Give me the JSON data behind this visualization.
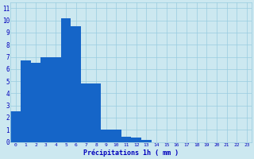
{
  "categories": [
    0,
    1,
    2,
    3,
    4,
    5,
    6,
    7,
    8,
    9,
    10,
    11,
    12,
    13,
    14,
    15,
    16,
    17,
    18,
    19,
    20,
    21,
    22,
    23
  ],
  "values": [
    2.5,
    6.7,
    6.5,
    7.0,
    7.0,
    10.2,
    9.5,
    4.8,
    4.8,
    1.0,
    1.0,
    0.4,
    0.35,
    0.15,
    0.0,
    0.0,
    0.0,
    0.0,
    0.0,
    0.0,
    0.0,
    0.0,
    0.0,
    0.0
  ],
  "bar_color": "#1565c8",
  "background_color": "#cce8f0",
  "grid_color": "#99cce0",
  "xlabel": "Précipitations 1h ( mm )",
  "xlabel_color": "#0000bb",
  "tick_color": "#0000bb",
  "ylabel_ticks": [
    0,
    1,
    2,
    3,
    4,
    5,
    6,
    7,
    8,
    9,
    10,
    11
  ],
  "ylim": [
    0,
    11.5
  ],
  "xlim": [
    -0.5,
    23.5
  ],
  "figsize": [
    3.2,
    2.0
  ],
  "dpi": 100
}
